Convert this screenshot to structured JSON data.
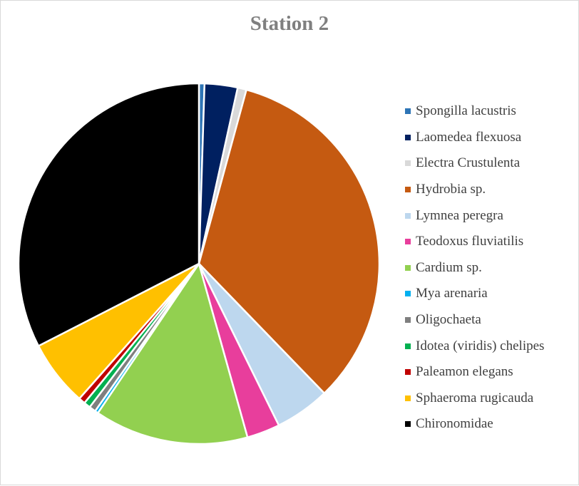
{
  "chart_data": {
    "type": "pie",
    "title": "Station 2",
    "legend_position": "right",
    "categories": [
      "Spongilla lacustris",
      "Laomedea flexuosa",
      "Electra Crustulenta",
      "Hydrobia sp.",
      "Lymnea peregra",
      "Teodoxus fluviatilis",
      "Cardium sp.",
      "Mya arenaria",
      "Oligochaeta",
      "Idotea (viridis) chelipes",
      "Paleamon elegans",
      "Sphaeroma rugicauda",
      "Chironomidae"
    ],
    "values": [
      0.5,
      3.0,
      0.8,
      34.0,
      5.0,
      3.0,
      14.0,
      0.3,
      0.6,
      0.6,
      0.6,
      6.0,
      33.0
    ],
    "colors": [
      "#2e75b6",
      "#002060",
      "#d9d9d9",
      "#c55a11",
      "#bdd7ee",
      "#e83e9c",
      "#92d050",
      "#00b0f0",
      "#7f7f7f",
      "#00b050",
      "#c00000",
      "#ffc000",
      "#000000"
    ]
  }
}
